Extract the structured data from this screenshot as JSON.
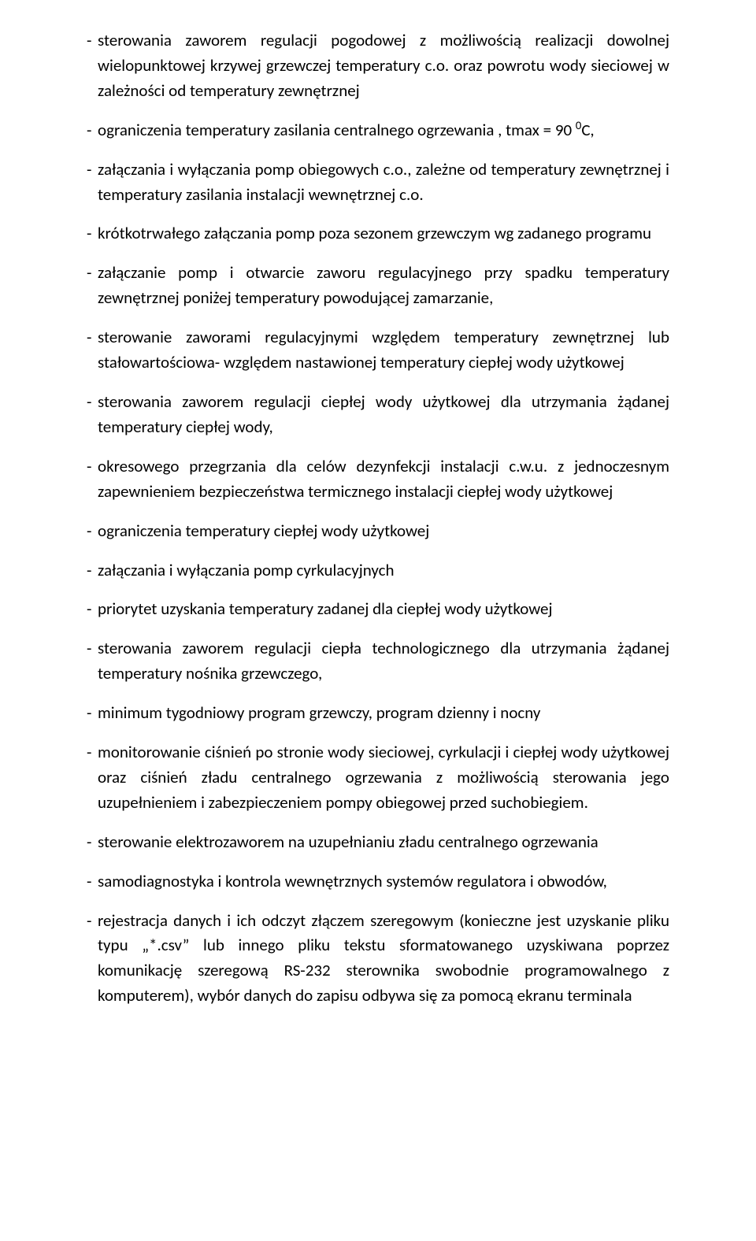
{
  "items": [
    {
      "text": "sterowania zaworem regulacji pogodowej z możliwością realizacji dowolnej wielopunktowej krzywej grzewczej temperatury c.o. oraz powrotu wody sieciowej w zależności od temperatury zewnętrznej"
    },
    {
      "text": "ograniczenia temperatury zasilania centralnego ogrzewania , tmax = 90 ",
      "suffix": "C,",
      "sup": "0"
    },
    {
      "text": "załączania i wyłączania pomp obiegowych c.o., zależne od temperatury zewnętrznej i temperatury zasilania instalacji wewnętrznej c.o."
    },
    {
      "text": "krótkotrwałego załączania pomp poza sezonem grzewczym wg zadanego programu"
    },
    {
      "text": "załączanie pomp i otwarcie zaworu regulacyjnego przy spadku temperatury zewnętrznej poniżej temperatury powodującej zamarzanie,"
    },
    {
      "text": "sterowanie zaworami regulacyjnymi względem temperatury zewnętrznej lub stałowartościowa- względem nastawionej temperatury ciepłej wody użytkowej"
    },
    {
      "text": "sterowania zaworem regulacji ciepłej wody użytkowej dla utrzymania żądanej temperatury ciepłej wody,"
    },
    {
      "text": "okresowego przegrzania dla celów dezynfekcji instalacji c.w.u. z jednoczesnym zapewnieniem bezpieczeństwa termicznego instalacji ciepłej wody użytkowej"
    },
    {
      "text": "ograniczenia temperatury ciepłej wody użytkowej"
    },
    {
      "text": "załączania i wyłączania pomp cyrkulacyjnych"
    },
    {
      "text": "priorytet uzyskania temperatury zadanej dla ciepłej wody użytkowej"
    },
    {
      "text": "sterowania zaworem regulacji ciepła technologicznego dla utrzymania żądanej temperatury nośnika grzewczego,"
    },
    {
      "text": "minimum tygodniowy program grzewczy, program dzienny i nocny"
    },
    {
      "text": "monitorowanie ciśnień po stronie wody sieciowej, cyrkulacji i ciepłej wody użytkowej oraz ciśnień zładu centralnego ogrzewania z możliwością sterowania jego uzupełnieniem i zabezpieczeniem pompy obiegowej przed suchobiegiem."
    },
    {
      "text": "sterowanie elektrozaworem na uzupełnianiu zładu centralnego ogrzewania"
    },
    {
      "text": "samodiagnostyka i kontrola wewnętrznych systemów regulatora i obwodów,"
    },
    {
      "text": "rejestracja danych i ich odczyt złączem szeregowym (konieczne jest uzyskanie pliku typu „*.csv” lub innego pliku tekstu sformatowanego uzyskiwana poprzez komunikację szeregową RS-232 sterownika swobodnie programowalnego z komputerem), wybór danych do zapisu odbywa się za pomocą ekranu terminala"
    }
  ]
}
